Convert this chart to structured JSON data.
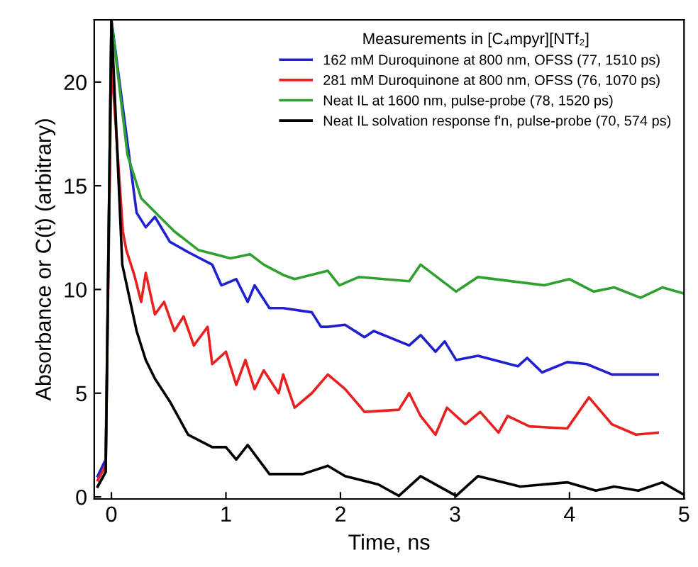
{
  "chart_data": {
    "type": "line",
    "xlabel": "Time, ns",
    "ylabel": "Absorbance or C(t) (arbitrary)",
    "legend_title": "Measurements in [C₄mpyr][NTf₂]",
    "legend": "top right",
    "grid": false,
    "xlim": [
      -0.15,
      5
    ],
    "ylim": [
      -0.1,
      23
    ],
    "xticks": [
      0,
      1,
      2,
      3,
      4,
      5
    ],
    "yticks": [
      0,
      5,
      10,
      15,
      20
    ],
    "series": [
      {
        "name": "162 mM Duroquinone at 800 nm, OFSS (77, 1510 ps)",
        "color": "#2020d0",
        "x": [
          -0.12,
          -0.05,
          0.0,
          0.22,
          0.3,
          0.38,
          0.51,
          0.67,
          0.88,
          0.96,
          1.09,
          1.19,
          1.25,
          1.38,
          1.5,
          1.75,
          1.83,
          1.89,
          2.04,
          2.21,
          2.29,
          2.6,
          2.7,
          2.83,
          2.91,
          3.01,
          3.2,
          3.55,
          3.63,
          3.76,
          3.98,
          4.15,
          4.37,
          4.77
        ],
        "values": [
          1.0,
          1.8,
          23,
          13.7,
          13.0,
          13.5,
          12.3,
          11.8,
          11.2,
          10.2,
          10.5,
          9.4,
          10.2,
          9.1,
          9.1,
          8.9,
          8.2,
          8.2,
          8.3,
          7.7,
          8.0,
          7.3,
          7.8,
          7.0,
          7.5,
          6.6,
          6.8,
          6.3,
          6.7,
          6.0,
          6.5,
          6.4,
          5.9,
          5.9
        ]
      },
      {
        "name": "281 mM Duroquinone at 800 nm, OFSS (76, 1070 ps)",
        "color": "#e82020",
        "x": [
          -0.12,
          -0.05,
          0.0,
          0.1,
          0.13,
          0.2,
          0.26,
          0.3,
          0.38,
          0.46,
          0.55,
          0.63,
          0.72,
          0.84,
          0.88,
          1.0,
          1.09,
          1.17,
          1.25,
          1.33,
          1.46,
          1.5,
          1.6,
          1.75,
          1.89,
          2.04,
          2.21,
          2.51,
          2.6,
          2.7,
          2.83,
          2.93,
          3.09,
          3.22,
          3.38,
          3.46,
          3.65,
          3.98,
          4.17,
          4.37,
          4.58,
          4.77
        ],
        "values": [
          0.8,
          1.5,
          21,
          12.8,
          11.9,
          10.7,
          9.4,
          10.8,
          8.8,
          9.4,
          8.0,
          8.7,
          7.3,
          8.2,
          6.4,
          7.0,
          5.4,
          6.6,
          5.2,
          6.1,
          5.0,
          5.9,
          4.3,
          5.0,
          5.9,
          5.2,
          4.1,
          4.2,
          5.0,
          3.9,
          3.0,
          4.3,
          3.5,
          4.1,
          3.1,
          3.9,
          3.4,
          3.3,
          4.8,
          3.5,
          3.0,
          3.1
        ]
      },
      {
        "name": "Neat IL at 1600 nm, pulse-probe (78, 1520 ps)",
        "color": "#30a030",
        "x": [
          -0.12,
          -0.05,
          0.0,
          0.14,
          0.26,
          0.55,
          0.76,
          1.04,
          1.21,
          1.33,
          1.5,
          1.6,
          1.89,
          1.99,
          2.16,
          2.6,
          2.7,
          3.01,
          3.2,
          3.78,
          4.0,
          4.21,
          4.39,
          4.62,
          4.81,
          5.0
        ],
        "values": [
          0.5,
          1.2,
          23,
          16.5,
          14.4,
          12.8,
          11.9,
          11.5,
          11.7,
          11.2,
          10.7,
          10.5,
          10.9,
          10.2,
          10.6,
          10.4,
          11.2,
          9.9,
          10.6,
          10.2,
          10.5,
          9.9,
          10.1,
          9.6,
          10.1,
          9.8
        ]
      },
      {
        "name": "Neat IL solvation response f'n, pulse-probe (70, 574 ps)",
        "color": "#000000",
        "x": [
          -0.12,
          -0.05,
          0.0,
          0.095,
          0.22,
          0.3,
          0.38,
          0.51,
          0.59,
          0.67,
          0.88,
          1.0,
          1.09,
          1.19,
          1.38,
          1.5,
          1.67,
          1.89,
          2.04,
          2.33,
          2.51,
          2.7,
          3.01,
          3.2,
          3.57,
          3.98,
          4.23,
          4.39,
          4.6,
          4.81,
          5.0
        ],
        "values": [
          0.5,
          1.2,
          23,
          11.2,
          8.0,
          6.6,
          5.7,
          4.6,
          3.8,
          3.0,
          2.4,
          2.4,
          1.8,
          2.5,
          1.1,
          1.1,
          1.1,
          1.5,
          1.0,
          0.6,
          0.05,
          1.0,
          0.05,
          1.0,
          0.5,
          0.7,
          0.3,
          0.5,
          0.3,
          0.7,
          0.1
        ]
      }
    ]
  }
}
